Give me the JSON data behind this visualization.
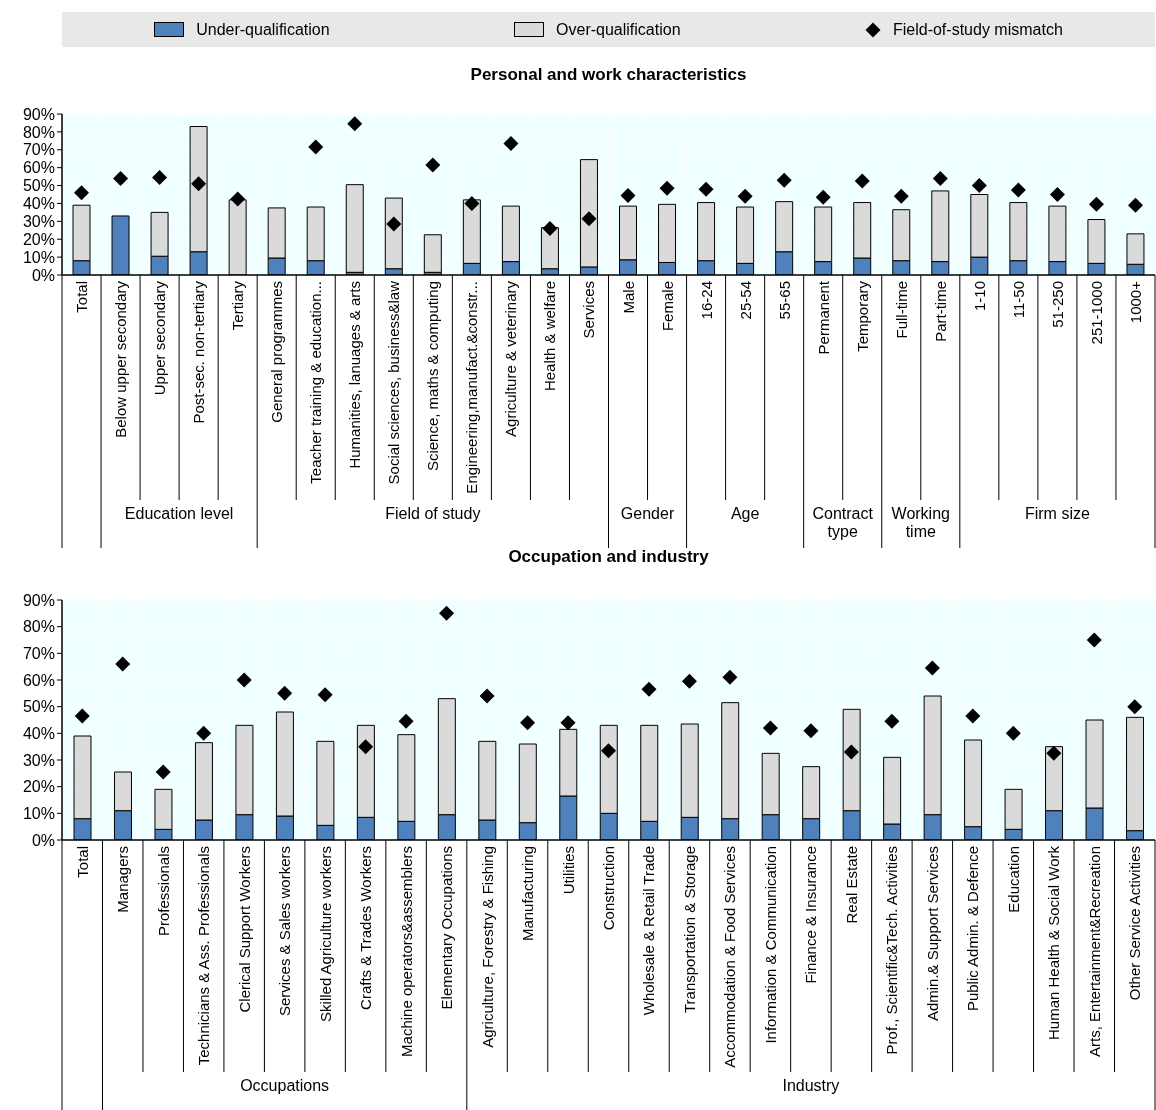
{
  "chart_data": [
    {
      "type": "bar",
      "title": "Personal and work characteristics",
      "stacked": true,
      "grid": true,
      "legend": "top",
      "categories": [
        "Total",
        "Below upper secondary",
        "Upper secondary",
        "Post-sec. non-tertiary",
        "Tertiary",
        "General programmes",
        "Teacher training & education...",
        "Humanities, lanuages & arts",
        "Social sciences, business&law",
        "Science, maths & computing",
        "Engineering,manufact.&constr...",
        "Agriculture & veterinary",
        "Health & welfare",
        "Services",
        "Male",
        "Female",
        "16-24",
        "25-54",
        "55-65",
        "Permanent",
        "Temporary",
        "Full-time",
        "Part-time",
        "1-10",
        "11-50",
        "51-250",
        "251-1000",
        "1000+"
      ],
      "series": [
        {
          "name": "Under-qualification",
          "color": "#4f81bd",
          "values": [
            8,
            33,
            10.5,
            13,
            0,
            9.5,
            8,
            1.5,
            3.5,
            1.5,
            6.5,
            7.5,
            3.5,
            4.5,
            8.5,
            7,
            8,
            6.5,
            13,
            7.5,
            9.5,
            8,
            7.5,
            10,
            8,
            7.5,
            6.5,
            6
          ]
        },
        {
          "name": "Over-qualification",
          "color": "#dadada",
          "values": [
            31,
            0,
            24.5,
            70,
            42,
            28,
            30,
            49,
            39.5,
            21,
            35.5,
            31,
            23,
            60,
            30,
            32.5,
            32.5,
            31.5,
            28,
            30.5,
            31,
            28.5,
            39.5,
            35,
            32.5,
            31,
            24.5,
            17
          ]
        },
        {
          "name": "Field-of-study mismatch",
          "type": "scatter",
          "marker": "diamond",
          "color": "#000000",
          "values": [
            46,
            54,
            54.5,
            51,
            42.5,
            null,
            71.5,
            84.5,
            28.5,
            61.5,
            40,
            73.5,
            26,
            31.5,
            44.5,
            48.5,
            48,
            44,
            53,
            43.5,
            52.5,
            44,
            54,
            50,
            47.5,
            45,
            39.5,
            39
          ]
        }
      ],
      "ylim": [
        0,
        90
      ],
      "yticks": [
        {
          "value": 0,
          "label": "0%"
        },
        {
          "value": 10,
          "label": "10%"
        },
        {
          "value": 20,
          "label": "20%"
        },
        {
          "value": 30,
          "label": "30%"
        },
        {
          "value": 40,
          "label": "40%"
        },
        {
          "value": 50,
          "label": "50%"
        },
        {
          "value": 60,
          "label": "60%"
        },
        {
          "value": 70,
          "label": "70%"
        },
        {
          "value": 80,
          "label": "80%"
        },
        {
          "value": 90,
          "label": "90%"
        }
      ],
      "annotations": [
        "Education level",
        "Field of study",
        "Gender",
        "Age",
        "Contract type",
        "Working time",
        "Firm size"
      ]
    },
    {
      "type": "bar",
      "title": "Occupation and industry",
      "stacked": true,
      "grid": true,
      "categories": [
        "Total",
        "Managers",
        "Professionals",
        "Technicians & Ass. Professionals",
        "Clerical Support Workers",
        "Services & Sales workers",
        "Skilled Agriculture workers",
        "Crafts & Trades Workers",
        "Machine operators&assemblers",
        "Elementary Occupations",
        "Agriculture, Forestry & Fishing",
        "Manufacturing",
        "Utilities",
        "Construction",
        "Wholesale & Retail Trade",
        "Transportation & Storage",
        "Accommodation & Food Services",
        "Information & Communication",
        "Finance & Insurance",
        "Real Estate",
        "Prof., Scientific&Tech. Activities",
        "Admin.& Support Services",
        "Public Admin. & Defence",
        "Education",
        "Human Health & Social Work",
        "Arts, Entertainment&Recreation",
        "Other Service Activities"
      ],
      "series": [
        {
          "color": "#4f81bd",
          "values": [
            8,
            11,
            4,
            7.5,
            9.5,
            9,
            5.5,
            8.5,
            7,
            9.5,
            7.5,
            6.5,
            16.5,
            10,
            7,
            8.5,
            8,
            9.5,
            8,
            11,
            6,
            9.5,
            5,
            4,
            11,
            12,
            3.5
          ]
        },
        {
          "color": "#dadada",
          "values": [
            31,
            14.5,
            15,
            29,
            33.5,
            39,
            31.5,
            34.5,
            32.5,
            43.5,
            29.5,
            29.5,
            25,
            33,
            36,
            35,
            43.5,
            23,
            19.5,
            38,
            25,
            44.5,
            32.5,
            15,
            24,
            33,
            42.5
          ]
        },
        {
          "type": "scatter",
          "marker": "diamond",
          "color": "#000000",
          "values": [
            46.5,
            66,
            25.5,
            40,
            60,
            55,
            54.5,
            35,
            44.5,
            85,
            54,
            44,
            44,
            33.5,
            56.5,
            59.5,
            61,
            42,
            41,
            33,
            44.5,
            64.5,
            46.5,
            40,
            32.5,
            75,
            50
          ]
        }
      ],
      "ylim": [
        0,
        90
      ],
      "yticks": [
        {
          "value": 0,
          "label": "0%"
        },
        {
          "value": 10,
          "label": "10%"
        },
        {
          "value": 20,
          "label": "20%"
        },
        {
          "value": 30,
          "label": "30%"
        },
        {
          "value": 40,
          "label": "40%"
        },
        {
          "value": 50,
          "label": "50%"
        },
        {
          "value": 60,
          "label": "60%"
        },
        {
          "value": 70,
          "label": "70%"
        },
        {
          "value": 80,
          "label": "80%"
        },
        {
          "value": 90,
          "label": "90%"
        }
      ],
      "annotations": [
        "Occupations",
        "Industry"
      ]
    }
  ]
}
